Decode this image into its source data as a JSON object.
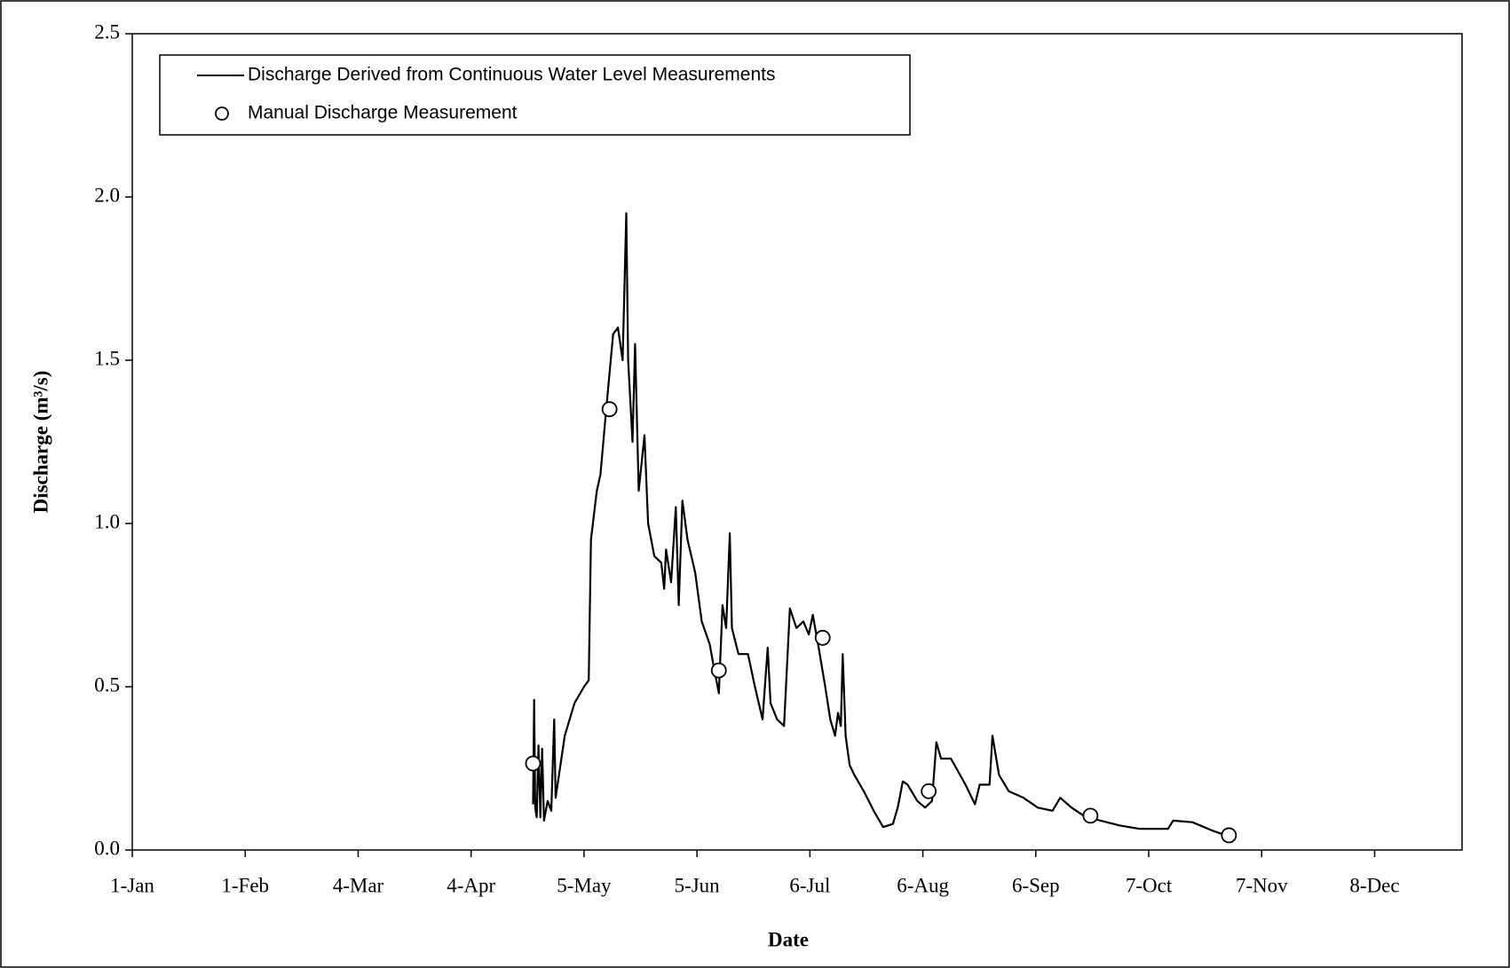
{
  "chart_data": {
    "type": "line",
    "x_label": "Date",
    "y_label": "Discharge (m³/s)",
    "xlim": [
      1,
      366
    ],
    "xticks": [
      {
        "value": 1,
        "label": "1-Jan"
      },
      {
        "value": 32,
        "label": "1-Feb"
      },
      {
        "value": 63,
        "label": "4-Mar"
      },
      {
        "value": 94,
        "label": "4-Apr"
      },
      {
        "value": 125,
        "label": "5-May"
      },
      {
        "value": 156,
        "label": "5-Jun"
      },
      {
        "value": 187,
        "label": "6-Jul"
      },
      {
        "value": 218,
        "label": "6-Aug"
      },
      {
        "value": 249,
        "label": "6-Sep"
      },
      {
        "value": 280,
        "label": "7-Oct"
      },
      {
        "value": 311,
        "label": "7-Nov"
      },
      {
        "value": 342,
        "label": "8-Dec"
      }
    ],
    "ylim": [
      0,
      2.5
    ],
    "yticks": [
      {
        "value": 0,
        "label": "0.0"
      },
      0.5,
      {
        "value": 1,
        "label": "1.0"
      },
      1.5,
      {
        "value": 2,
        "label": "2.0"
      },
      2.5
    ],
    "legend": "upper left",
    "series": [
      {
        "name": "Discharge Derived from Continuous Water Level Measurements",
        "type": "line",
        "color": "#000000",
        "x": [
          111,
          111.3,
          111.6,
          112,
          112.5,
          113,
          113.5,
          114,
          115,
          116,
          116.8,
          117.2,
          118.4,
          119.7,
          122.4,
          125,
          126.3,
          126.9,
          128.5,
          129.5,
          131.1,
          133,
          134.3,
          135.6,
          136.6,
          137.1,
          138.3,
          139,
          140,
          141.6,
          142.6,
          144.3,
          146.2,
          147,
          147.5,
          148.9,
          150.2,
          151,
          152,
          153.4,
          155.5,
          157.3,
          159.5,
          160.8,
          162,
          163,
          164,
          165,
          165.6,
          167.4,
          170,
          171.9,
          174,
          175.4,
          176.2,
          178,
          179.9,
          181.5,
          183.3,
          185.2,
          186.7,
          187.8,
          189.4,
          191.2,
          192.6,
          193.9,
          194.7,
          195.5,
          196,
          196.8,
          197.9,
          199.2,
          201.8,
          204.5,
          207.1,
          209.8,
          211.1,
          212.5,
          213.8,
          216.5,
          218.6,
          220.5,
          221.7,
          223,
          225.7,
          229.7,
          232.3,
          233.6,
          236.3,
          237.1,
          238.9,
          241.6,
          245.6,
          249.5,
          253.6,
          255.7,
          258.8,
          262.8,
          266.8,
          272.1,
          277.4,
          285.3,
          286.7,
          292,
          297.3,
          301.2
        ],
        "values": [
          0.14,
          0.46,
          0.13,
          0.1,
          0.32,
          0.1,
          0.31,
          0.09,
          0.15,
          0.12,
          0.4,
          0.16,
          0.25,
          0.35,
          0.45,
          0.5,
          0.52,
          0.95,
          1.1,
          1.15,
          1.35,
          1.58,
          1.6,
          1.5,
          1.95,
          1.5,
          1.25,
          1.55,
          1.1,
          1.27,
          1.0,
          0.9,
          0.88,
          0.8,
          0.92,
          0.82,
          1.05,
          0.75,
          1.07,
          0.95,
          0.85,
          0.7,
          0.63,
          0.55,
          0.48,
          0.75,
          0.68,
          0.97,
          0.68,
          0.6,
          0.6,
          0.5,
          0.4,
          0.62,
          0.45,
          0.4,
          0.38,
          0.74,
          0.68,
          0.7,
          0.66,
          0.72,
          0.62,
          0.5,
          0.4,
          0.35,
          0.42,
          0.38,
          0.6,
          0.35,
          0.26,
          0.23,
          0.18,
          0.12,
          0.07,
          0.08,
          0.13,
          0.21,
          0.2,
          0.15,
          0.13,
          0.15,
          0.33,
          0.28,
          0.28,
          0.2,
          0.14,
          0.2,
          0.2,
          0.35,
          0.23,
          0.18,
          0.16,
          0.13,
          0.12,
          0.16,
          0.13,
          0.1,
          0.09,
          0.075,
          0.065,
          0.065,
          0.09,
          0.085,
          0.06,
          0.045
        ]
      },
      {
        "name": "Manual Discharge Measurement",
        "type": "scatter",
        "color": "#ffffff",
        "x": [
          111,
          132,
          162,
          190.5,
          219.6,
          264,
          302
        ],
        "values": [
          0.265,
          1.35,
          0.55,
          0.65,
          0.18,
          0.105,
          0.045
        ]
      }
    ]
  }
}
